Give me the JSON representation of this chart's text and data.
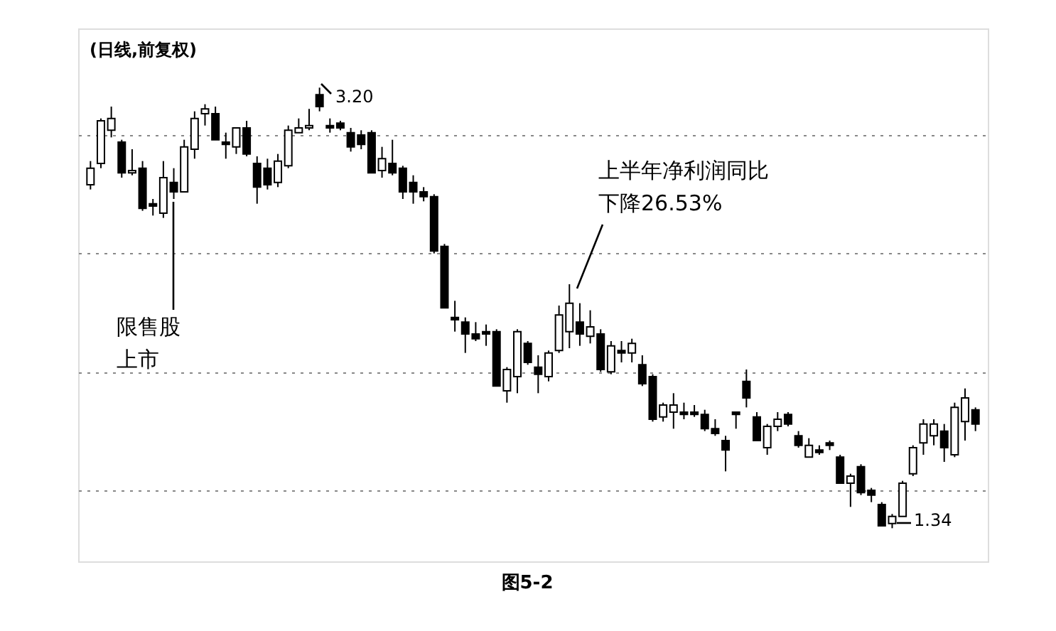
{
  "chart_data": {
    "type": "candlestick",
    "title": "(日线,前复权)",
    "categories": [
      null,
      null,
      null,
      null,
      null,
      null,
      null,
      null,
      null,
      null,
      null,
      null,
      null,
      null,
      null,
      null,
      null,
      null,
      null,
      null,
      null,
      null,
      null,
      null,
      null,
      null,
      null,
      null,
      null,
      null,
      null,
      null,
      null,
      null,
      null,
      null,
      null,
      null,
      null,
      null,
      null,
      null,
      null,
      null,
      null,
      null,
      null,
      null,
      null,
      null,
      null,
      null,
      null,
      null,
      null,
      null,
      null,
      null,
      null,
      null,
      null,
      null,
      null,
      null,
      null,
      null,
      null,
      null,
      null,
      null,
      null,
      null,
      null,
      null,
      null,
      null,
      null,
      null,
      null,
      null,
      null,
      null,
      null,
      null,
      null,
      null
    ],
    "ohlc": [
      [
        2.79,
        2.89,
        2.77,
        2.86
      ],
      [
        2.88,
        3.07,
        2.86,
        3.06
      ],
      [
        3.02,
        3.12,
        2.99,
        3.07
      ],
      [
        2.97,
        2.98,
        2.82,
        2.84
      ],
      [
        2.84,
        2.94,
        2.83,
        2.85
      ],
      [
        2.86,
        2.89,
        2.68,
        2.69
      ],
      [
        2.71,
        2.73,
        2.66,
        2.7
      ],
      [
        2.67,
        2.89,
        2.65,
        2.82
      ],
      [
        2.8,
        2.86,
        2.73,
        2.76
      ],
      [
        2.76,
        2.98,
        2.76,
        2.95
      ],
      [
        2.94,
        3.1,
        2.9,
        3.07
      ],
      [
        3.09,
        3.13,
        3.04,
        3.11
      ],
      [
        3.09,
        3.12,
        2.98,
        2.98
      ],
      [
        2.97,
        3.01,
        2.9,
        2.96
      ],
      [
        2.95,
        3.03,
        2.92,
        3.03
      ],
      [
        3.03,
        3.06,
        2.91,
        2.92
      ],
      [
        2.88,
        2.91,
        2.71,
        2.78
      ],
      [
        2.86,
        2.9,
        2.77,
        2.79
      ],
      [
        2.8,
        2.92,
        2.78,
        2.89
      ],
      [
        2.87,
        3.04,
        2.86,
        3.02
      ],
      [
        3.01,
        3.07,
        3.01,
        3.03
      ],
      [
        3.03,
        3.11,
        3.02,
        3.04
      ],
      [
        3.17,
        3.2,
        3.1,
        3.12
      ],
      [
        3.04,
        3.07,
        3.01,
        3.03
      ],
      [
        3.05,
        3.06,
        3.02,
        3.03
      ],
      [
        3.01,
        3.03,
        2.93,
        2.95
      ],
      [
        3.0,
        3.02,
        2.94,
        2.96
      ],
      [
        3.01,
        3.02,
        2.84,
        2.84
      ],
      [
        2.85,
        2.95,
        2.82,
        2.9
      ],
      [
        2.88,
        2.98,
        2.83,
        2.84
      ],
      [
        2.86,
        2.87,
        2.73,
        2.76
      ],
      [
        2.8,
        2.83,
        2.71,
        2.76
      ],
      [
        2.76,
        2.78,
        2.72,
        2.74
      ],
      [
        2.74,
        2.75,
        2.5,
        2.51
      ],
      [
        2.53,
        2.54,
        2.27,
        2.27
      ],
      [
        2.23,
        2.3,
        2.17,
        2.22
      ],
      [
        2.21,
        2.23,
        2.08,
        2.16
      ],
      [
        2.16,
        2.21,
        2.13,
        2.14
      ],
      [
        2.17,
        2.2,
        2.11,
        2.16
      ],
      [
        2.17,
        2.18,
        1.94,
        1.94
      ],
      [
        1.92,
        2.02,
        1.87,
        2.01
      ],
      [
        1.98,
        2.18,
        1.91,
        2.17
      ],
      [
        2.12,
        2.13,
        2.03,
        2.04
      ],
      [
        2.02,
        2.07,
        1.91,
        1.99
      ],
      [
        1.98,
        2.09,
        1.96,
        2.08
      ],
      [
        2.09,
        2.28,
        2.08,
        2.24
      ],
      [
        2.17,
        2.37,
        2.1,
        2.29
      ],
      [
        2.21,
        2.29,
        2.11,
        2.16
      ],
      [
        2.15,
        2.26,
        2.12,
        2.19
      ],
      [
        2.16,
        2.18,
        2.0,
        2.01
      ],
      [
        2.0,
        2.13,
        1.99,
        2.11
      ],
      [
        2.09,
        2.13,
        2.04,
        2.08
      ],
      [
        2.08,
        2.14,
        2.04,
        2.12
      ],
      [
        2.03,
        2.07,
        1.94,
        1.95
      ],
      [
        1.98,
        1.99,
        1.79,
        1.8
      ],
      [
        1.81,
        1.87,
        1.79,
        1.86
      ],
      [
        1.83,
        1.91,
        1.76,
        1.86
      ],
      [
        1.83,
        1.87,
        1.8,
        1.82
      ],
      [
        1.83,
        1.86,
        1.81,
        1.82
      ],
      [
        1.82,
        1.84,
        1.75,
        1.76
      ],
      [
        1.76,
        1.8,
        1.73,
        1.74
      ],
      [
        1.71,
        1.73,
        1.58,
        1.67
      ],
      [
        1.83,
        1.83,
        1.76,
        1.82
      ],
      [
        1.96,
        2.01,
        1.85,
        1.89
      ],
      [
        1.81,
        1.83,
        1.71,
        1.71
      ],
      [
        1.68,
        1.78,
        1.65,
        1.77
      ],
      [
        1.77,
        1.83,
        1.75,
        1.8
      ],
      [
        1.82,
        1.83,
        1.77,
        1.78
      ],
      [
        1.73,
        1.75,
        1.68,
        1.69
      ],
      [
        1.64,
        1.72,
        1.64,
        1.69
      ],
      [
        1.67,
        1.69,
        1.65,
        1.66
      ],
      [
        1.7,
        1.71,
        1.67,
        1.69
      ],
      [
        1.64,
        1.65,
        1.53,
        1.53
      ],
      [
        1.53,
        1.57,
        1.43,
        1.56
      ],
      [
        1.6,
        1.61,
        1.48,
        1.49
      ],
      [
        1.5,
        1.51,
        1.45,
        1.48
      ],
      [
        1.44,
        1.45,
        1.35,
        1.35
      ],
      [
        1.36,
        1.4,
        1.34,
        1.39
      ],
      [
        1.39,
        1.54,
        1.39,
        1.53
      ],
      [
        1.57,
        1.69,
        1.56,
        1.68
      ],
      [
        1.7,
        1.8,
        1.65,
        1.78
      ],
      [
        1.73,
        1.8,
        1.69,
        1.78
      ],
      [
        1.75,
        1.78,
        1.62,
        1.68
      ],
      [
        1.65,
        1.87,
        1.64,
        1.85
      ],
      [
        1.79,
        1.93,
        1.71,
        1.89
      ],
      [
        1.84,
        1.85,
        1.75,
        1.78
      ]
    ],
    "ylim": [
      1.2,
      3.45
    ],
    "yticks": [
      {
        "value": 1.5,
        "label": null
      },
      {
        "value": 2.0,
        "label": null
      },
      {
        "value": 2.5,
        "label": null
      },
      {
        "value": 3.0,
        "label": null
      }
    ],
    "grid": "y",
    "tick_labels": false,
    "annotations": [
      "3.20",
      "1.34",
      "限售股上市",
      "上半年净利润同比下降26.53%",
      "图5-2"
    ]
  }
}
